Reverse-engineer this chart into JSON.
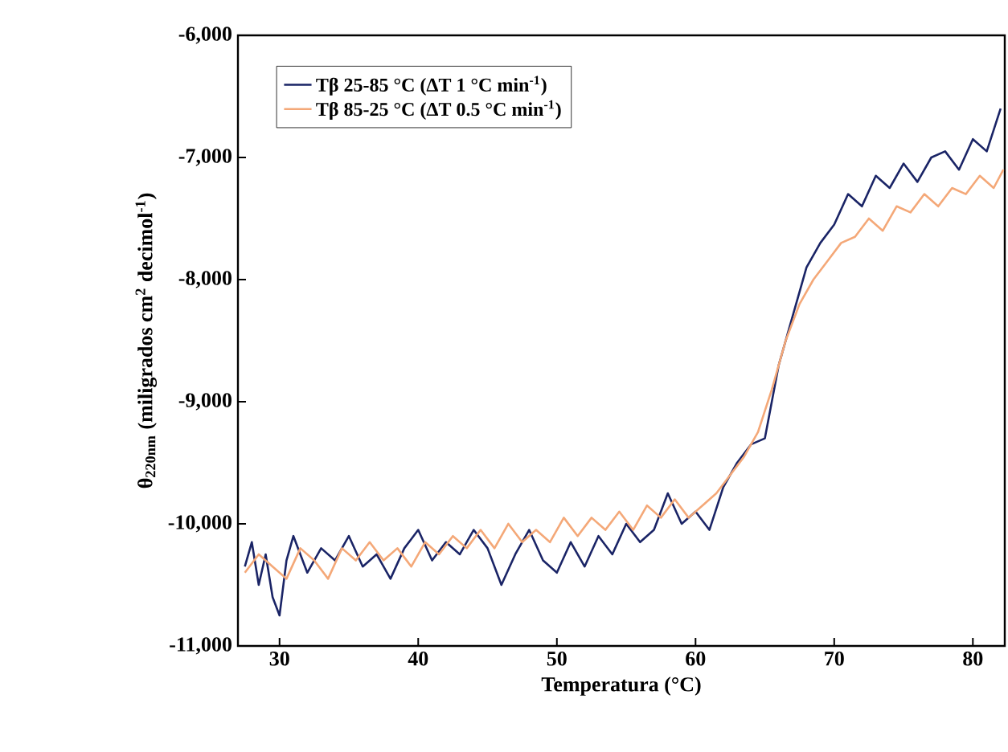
{
  "chart_data": {
    "type": "line",
    "xlabel": "Temperatura (°C)",
    "ylabel": "θ$_{220nm}$ (miligrados cm$^{2}$ decimol$^{-1}$)",
    "xlim": [
      27,
      82.3
    ],
    "xticks": [
      30,
      40,
      50,
      60,
      70,
      80
    ],
    "ylim": [
      -11000,
      -6000
    ],
    "yticks": [
      {
        "value": -11000,
        "label": "-11,000"
      },
      {
        "value": -10000,
        "label": "-10,000"
      },
      {
        "value": -9000,
        "label": "-9,000"
      },
      {
        "value": -8000,
        "label": "-8,000"
      },
      {
        "value": -7000,
        "label": "-7,000"
      },
      {
        "value": -6000,
        "label": "-6,000"
      }
    ],
    "legend": "top left",
    "grid": false,
    "line_style": "solid",
    "marker": "none",
    "series": [
      {
        "name": "Tβ 25-85 °C (ΔT 1 °C min$^{-1}$)",
        "color": "#1a2466",
        "x": [
          27.5,
          28,
          28.5,
          29,
          29.5,
          30,
          30.5,
          31,
          32,
          33,
          34,
          35,
          36,
          37,
          38,
          39,
          40,
          41,
          42,
          43,
          44,
          45,
          46,
          47,
          48,
          49,
          50,
          51,
          52,
          53,
          54,
          55,
          56,
          57,
          58,
          59,
          60,
          61,
          62,
          63,
          64,
          65,
          66,
          67,
          68,
          69,
          70,
          71,
          72,
          73,
          74,
          75,
          76,
          77,
          78,
          79,
          80,
          81,
          82
        ],
        "values": [
          -10350,
          -10150,
          -10500,
          -10250,
          -10600,
          -10750,
          -10300,
          -10100,
          -10400,
          -10200,
          -10300,
          -10100,
          -10350,
          -10250,
          -10450,
          -10200,
          -10050,
          -10300,
          -10150,
          -10250,
          -10050,
          -10200,
          -10500,
          -10250,
          -10050,
          -10300,
          -10400,
          -10150,
          -10350,
          -10100,
          -10250,
          -10000,
          -10150,
          -10050,
          -9750,
          -10000,
          -9900,
          -10050,
          -9700,
          -9500,
          -9350,
          -9300,
          -8700,
          -8300,
          -7900,
          -7700,
          -7550,
          -7300,
          -7400,
          -7150,
          -7250,
          -7050,
          -7200,
          -7000,
          -6950,
          -7100,
          -6850,
          -6950,
          -6600
        ]
      },
      {
        "name": "Tβ 85-25 °C (ΔT 0.5 °C min$^{-1}$)",
        "color": "#f4a878",
        "x": [
          27.5,
          28.5,
          29.5,
          30.5,
          31.5,
          32.5,
          33.5,
          34.5,
          35.5,
          36.5,
          37.5,
          38.5,
          39.5,
          40.5,
          41.5,
          42.5,
          43.5,
          44.5,
          45.5,
          46.5,
          47.5,
          48.5,
          49.5,
          50.5,
          51.5,
          52.5,
          53.5,
          54.5,
          55.5,
          56.5,
          57.5,
          58.5,
          59.5,
          60.5,
          61.5,
          62.5,
          63.5,
          64.5,
          65.5,
          66.5,
          67.5,
          68.5,
          69.5,
          70.5,
          71.5,
          72.5,
          73.5,
          74.5,
          75.5,
          76.5,
          77.5,
          78.5,
          79.5,
          80.5,
          81.5,
          82.2
        ],
        "values": [
          -10400,
          -10250,
          -10350,
          -10450,
          -10200,
          -10300,
          -10450,
          -10200,
          -10300,
          -10150,
          -10300,
          -10200,
          -10350,
          -10150,
          -10250,
          -10100,
          -10200,
          -10050,
          -10200,
          -10000,
          -10150,
          -10050,
          -10150,
          -9950,
          -10100,
          -9950,
          -10050,
          -9900,
          -10050,
          -9850,
          -9950,
          -9800,
          -9950,
          -9850,
          -9750,
          -9600,
          -9450,
          -9250,
          -8900,
          -8500,
          -8200,
          -8000,
          -7850,
          -7700,
          -7650,
          -7500,
          -7600,
          -7400,
          -7450,
          -7300,
          -7400,
          -7250,
          -7300,
          -7150,
          -7250,
          -7100
        ]
      }
    ]
  }
}
